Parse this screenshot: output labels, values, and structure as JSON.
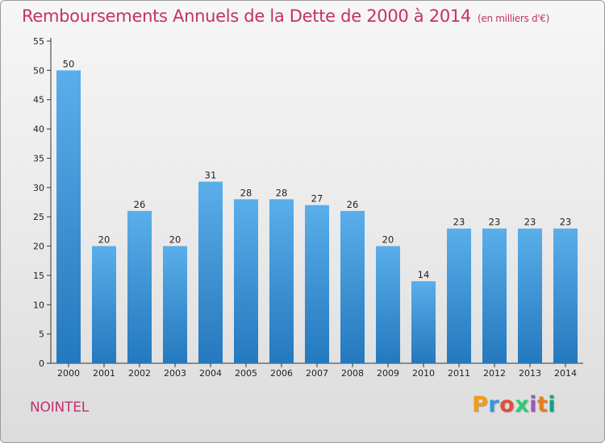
{
  "header": {
    "title": "Remboursements Annuels de la Dette de 2000 à 2014",
    "unit": "(en milliers d'€)"
  },
  "footer": {
    "commune": "NOINTEL",
    "logo_text": "Proxiti",
    "logo_colors": [
      "#f39c12",
      "#3498db",
      "#e74c3c",
      "#2ecc71",
      "#9b59b6",
      "#e67e22",
      "#16a085"
    ]
  },
  "colors": {
    "accent": "#c4306c",
    "bar_top": "#5aaeea",
    "bar_bottom": "#2478bd",
    "axis": "#333333",
    "grid": "#cfcfcf"
  },
  "chart_data": {
    "type": "bar",
    "title": "Remboursements Annuels de la Dette de 2000 à 2014",
    "xlabel": "",
    "ylabel": "",
    "categories": [
      "2000",
      "2001",
      "2002",
      "2003",
      "2004",
      "2005",
      "2006",
      "2007",
      "2008",
      "2009",
      "2010",
      "2011",
      "2012",
      "2013",
      "2014"
    ],
    "values": [
      50,
      20,
      26,
      20,
      31,
      28,
      28,
      27,
      26,
      20,
      14,
      23,
      23,
      23,
      23
    ],
    "data_labels": [
      "50",
      "20",
      "26",
      "20",
      "31",
      "28",
      "28",
      "27",
      "26",
      "20",
      "14",
      "23",
      "23",
      "23",
      "23"
    ],
    "yticks": [
      0,
      5,
      10,
      15,
      20,
      25,
      30,
      35,
      40,
      45,
      50,
      55
    ],
    "ylim": [
      0,
      55
    ],
    "grid": false,
    "legend": "none"
  }
}
